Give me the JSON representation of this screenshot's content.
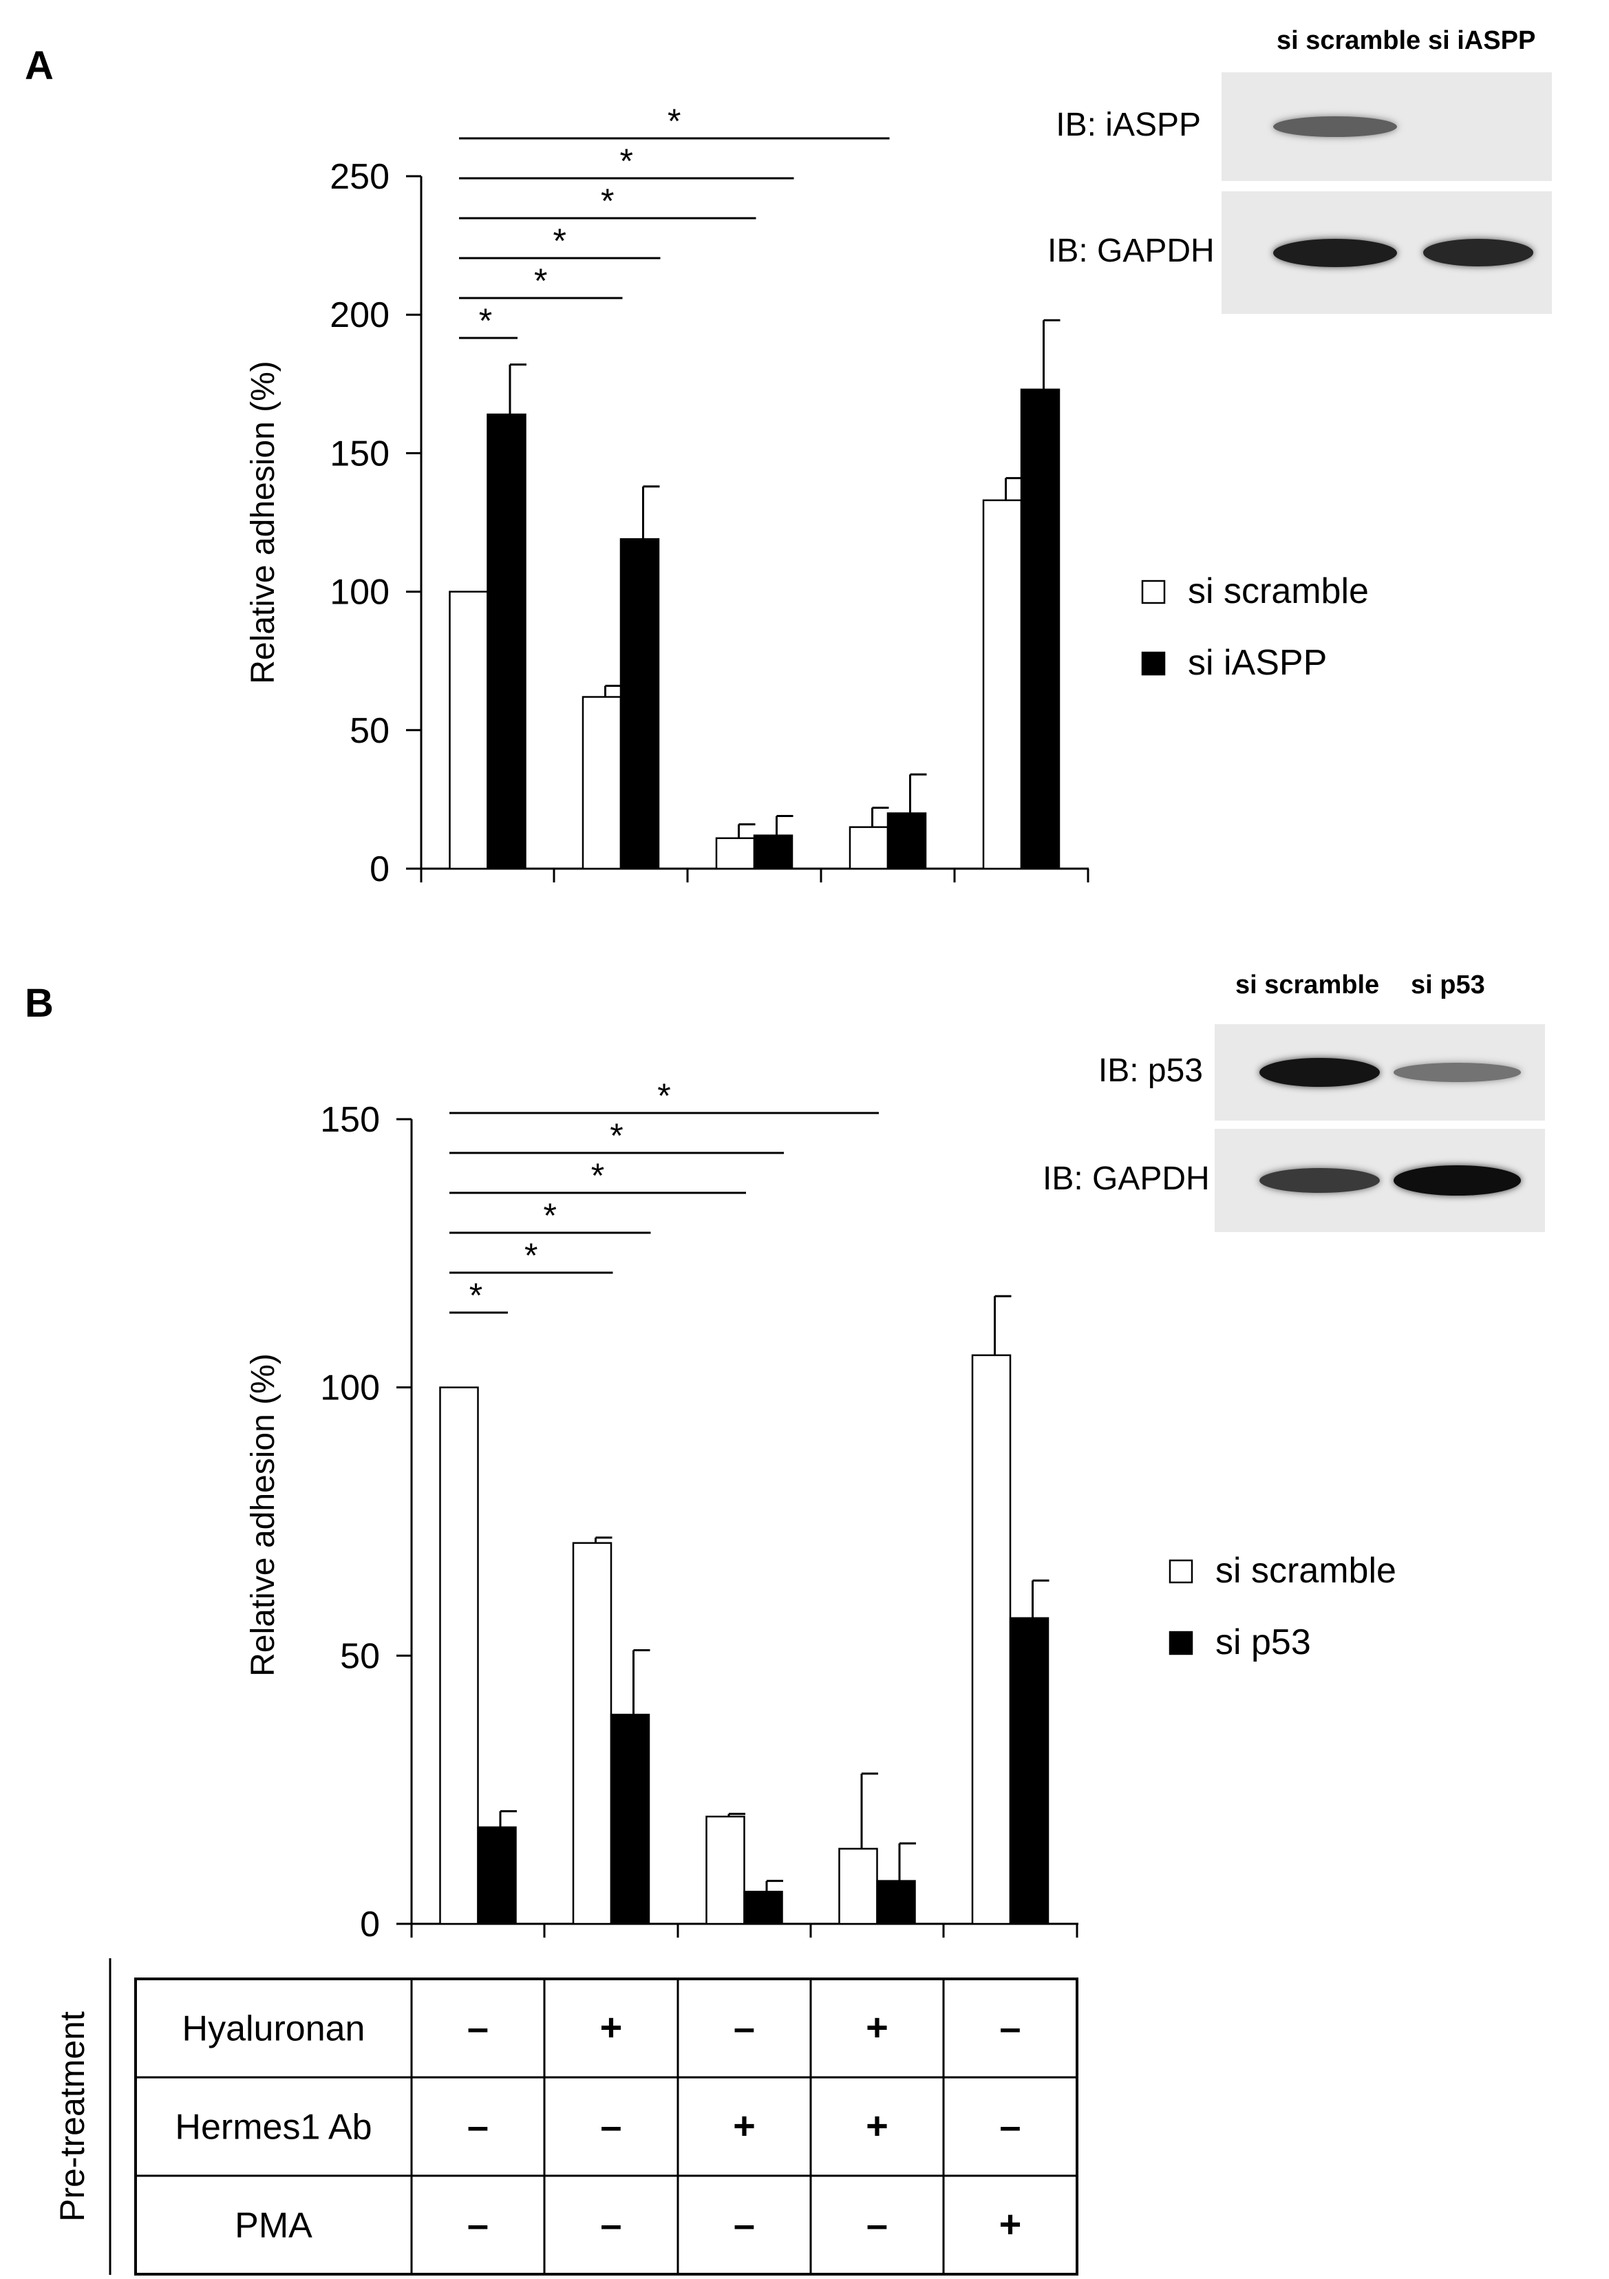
{
  "panels": [
    {
      "letter": "A",
      "chart_data": {
        "type": "bar",
        "ylabel": "Relative adhesion (%)",
        "ylim": [
          0,
          250
        ],
        "yticks": [
          0,
          50,
          100,
          150,
          200,
          250
        ],
        "categories": [
          "",
          "",
          "",
          "",
          ""
        ],
        "series": [
          {
            "name": "si scramble",
            "color": "#ffffff",
            "values": [
              100,
              62,
              11,
              15,
              133
            ],
            "errors": [
              0,
              4,
              5,
              7,
              8
            ]
          },
          {
            "name": "si iASPP",
            "color": "#000000",
            "values": [
              164,
              119,
              12,
              20,
              173
            ],
            "errors": [
              18,
              19,
              7,
              14,
              25
            ]
          }
        ],
        "significance": [
          {
            "from": 0,
            "to": 1,
            "label": "*"
          },
          {
            "from": 0,
            "to": 2,
            "label": "*"
          },
          {
            "from": 0,
            "to": 3,
            "label": "*"
          },
          {
            "from": 0,
            "to": 4,
            "label": "*"
          },
          {
            "from": 0,
            "to": 5,
            "label": "*"
          },
          {
            "from": 0,
            "to": 6,
            "label": "*"
          }
        ],
        "legend": [
          "si scramble",
          "si iASPP"
        ]
      },
      "blot": {
        "lanes": [
          "si scramble",
          "si iASPP"
        ],
        "rows": [
          {
            "label": "IB: iASPP",
            "intensity": [
              0.55,
              0.0
            ]
          },
          {
            "label": "IB: GAPDH",
            "intensity": [
              0.9,
              0.85
            ]
          }
        ]
      }
    },
    {
      "letter": "B",
      "chart_data": {
        "type": "bar",
        "ylabel": "Relative adhesion (%)",
        "ylim": [
          0,
          150
        ],
        "yticks": [
          0,
          50,
          100,
          150
        ],
        "categories": [
          "",
          "",
          "",
          "",
          ""
        ],
        "series": [
          {
            "name": "si scramble",
            "color": "#ffffff",
            "values": [
              100,
              71,
              20,
              14,
              106
            ],
            "errors": [
              0,
              1,
              0.5,
              14,
              11
            ]
          },
          {
            "name": "si p53",
            "color": "#000000",
            "values": [
              18,
              39,
              6,
              8,
              57
            ],
            "errors": [
              3,
              12,
              2,
              7,
              7
            ]
          }
        ],
        "significance": [
          {
            "from": 0,
            "to": 1,
            "label": "*"
          },
          {
            "from": 0,
            "to": 2,
            "label": "*"
          },
          {
            "from": 0,
            "to": 3,
            "label": "*"
          },
          {
            "from": 0,
            "to": 4,
            "label": "*"
          },
          {
            "from": 0,
            "to": 5,
            "label": "*"
          },
          {
            "from": 0,
            "to": 6,
            "label": "*"
          }
        ],
        "legend": [
          "si scramble",
          "si p53"
        ]
      },
      "blot": {
        "lanes": [
          "si scramble",
          "si p53"
        ],
        "rows": [
          {
            "label": "IB: p53",
            "intensity": [
              0.95,
              0.45
            ]
          },
          {
            "label": "IB: GAPDH",
            "intensity": [
              0.75,
              0.98
            ]
          }
        ]
      }
    }
  ],
  "treatment_table": {
    "group_label": "Pre-treatment",
    "rows": [
      {
        "label": "Hyaluronan",
        "values": [
          "–",
          "+",
          "–",
          "+",
          "–"
        ]
      },
      {
        "label": "Hermes1 Ab",
        "values": [
          "–",
          "–",
          "+",
          "+",
          "–"
        ]
      },
      {
        "label": "PMA",
        "values": [
          "–",
          "–",
          "–",
          "–",
          "+"
        ]
      }
    ]
  }
}
